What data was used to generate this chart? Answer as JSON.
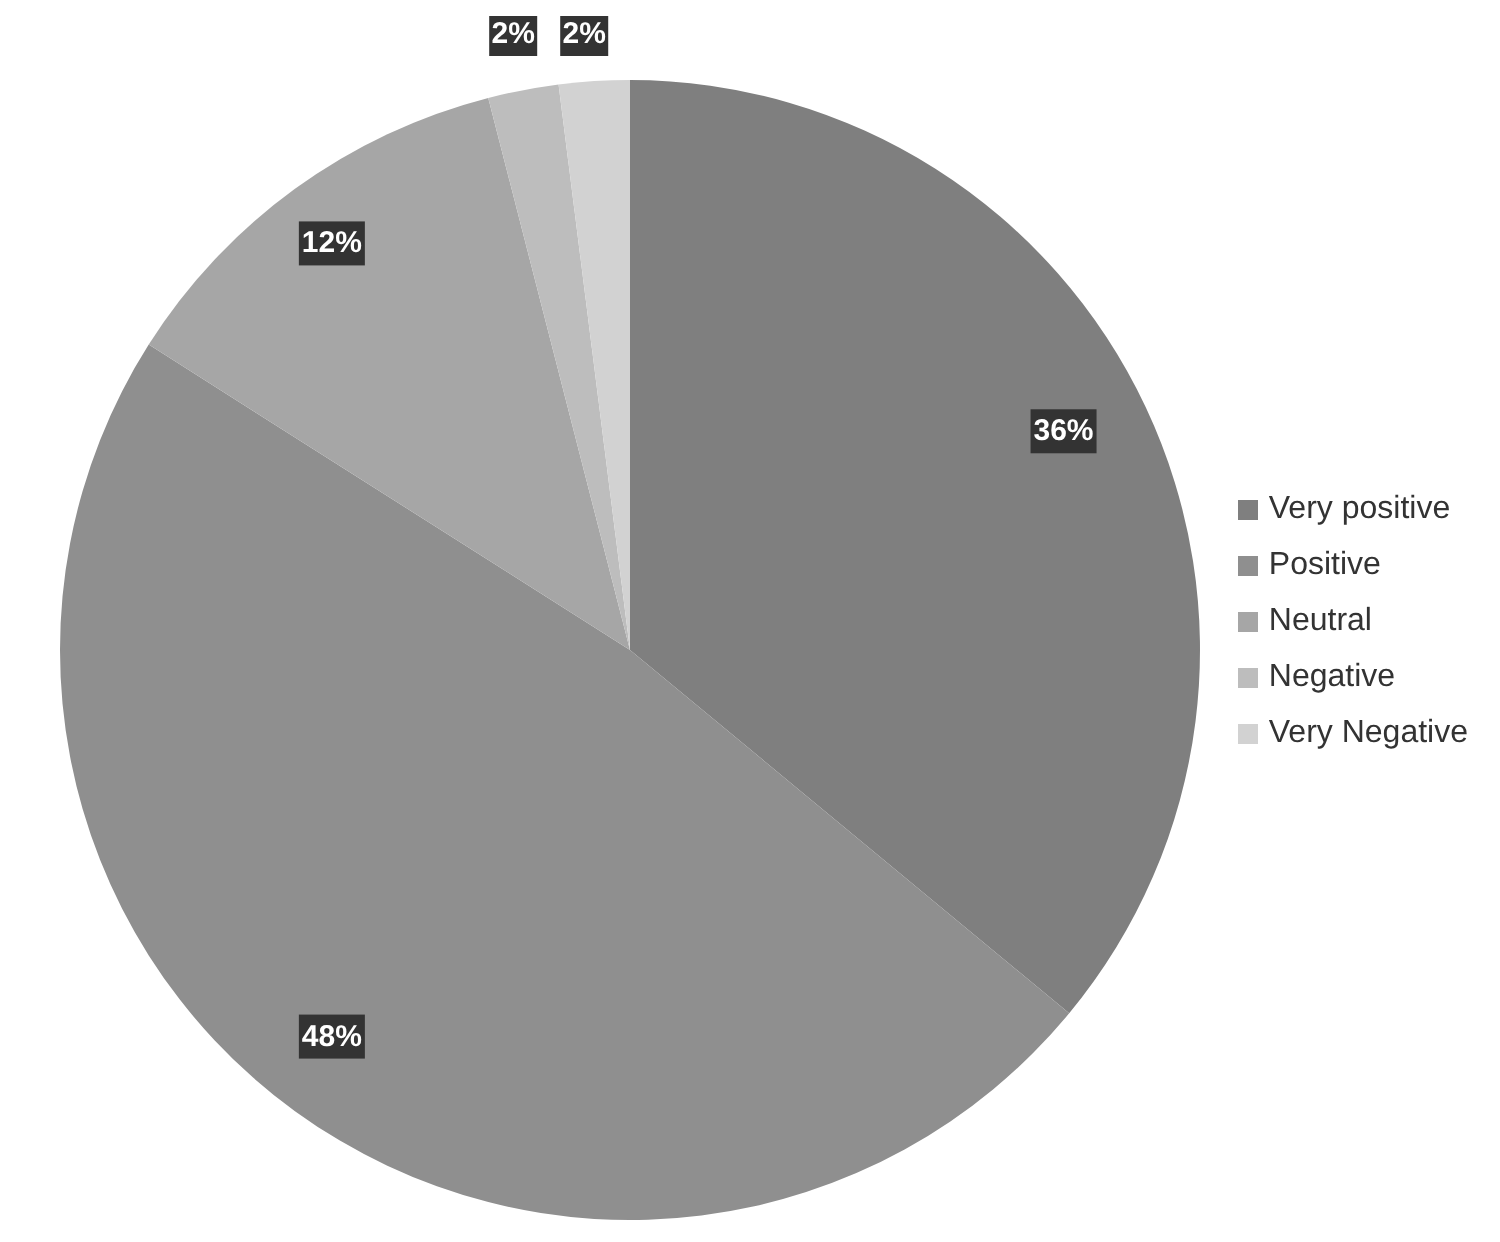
{
  "chart_data": {
    "type": "pie",
    "categories": [
      "Very positive",
      "Positive",
      "Neutral",
      "Negative",
      "Very Negative"
    ],
    "values": [
      36,
      48,
      12,
      2,
      2
    ],
    "colors": [
      "#7f7f7f",
      "#8f8f8f",
      "#a6a6a6",
      "#bdbdbd",
      "#d2d2d2"
    ],
    "value_labels": [
      "36%",
      "48%",
      "12%",
      "2%",
      "2%"
    ],
    "legend": "right"
  }
}
